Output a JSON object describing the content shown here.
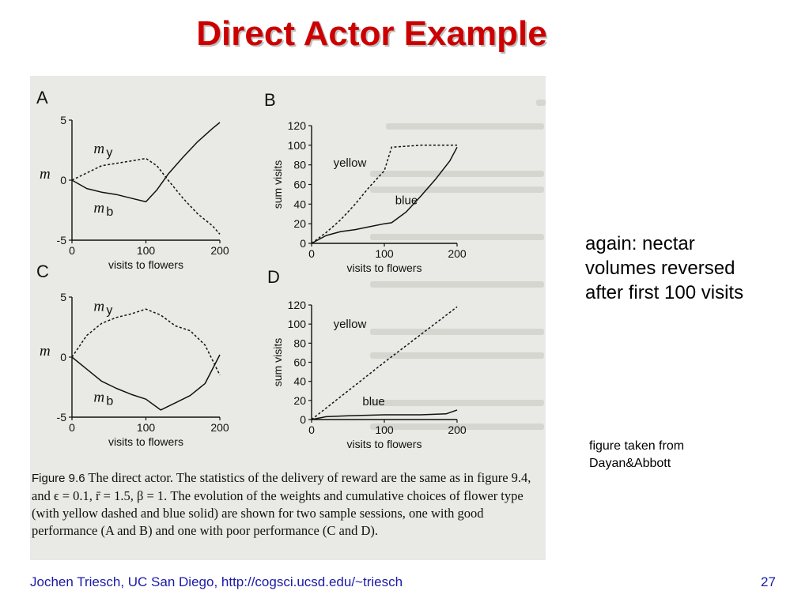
{
  "slide": {
    "title": "Direct Actor Example",
    "side_text": [
      "again: nectar",
      "volumes reversed",
      "after first 100 visits"
    ],
    "credit": [
      "figure taken from",
      "Dayan&Abbott"
    ],
    "footer_left": "Jochen Triesch, UC San Diego, http://cogsci.ucsd.edu/~triesch",
    "page_number": "27"
  },
  "caption": {
    "label": "Figure 9.6",
    "text": "The direct actor. The statistics of the delivery of reward are the same as in figure 9.4, and ϵ = 0.1, r̄ = 1.5, β = 1. The evolution of the weights and cumulative choices of flower type (with yellow dashed and blue solid) are shown for two sample sessions, one with good performance (A and B) and one with poor performance (C and D)."
  },
  "colors": {
    "title": "#cc0000",
    "footer": "#1a1aa8",
    "scan_background": "#e9e9e5"
  },
  "chart_data": [
    {
      "panel": "A",
      "type": "line",
      "xlabel": "visits to flowers",
      "ylabel": "m",
      "xlim": [
        0,
        200
      ],
      "ylim": [
        -5,
        5
      ],
      "xticks": [
        "0",
        "100",
        "200"
      ],
      "yticks": [
        "5",
        "0",
        "-5"
      ],
      "series": [
        {
          "name": "my",
          "style": "dashed",
          "x": [
            0,
            20,
            40,
            60,
            80,
            100,
            115,
            130,
            150,
            170,
            190,
            200
          ],
          "y": [
            0,
            0.6,
            1.2,
            1.4,
            1.6,
            1.8,
            1.2,
            0.0,
            -1.5,
            -2.8,
            -3.8,
            -4.5
          ]
        },
        {
          "name": "mb",
          "style": "solid",
          "x": [
            0,
            20,
            40,
            60,
            80,
            100,
            115,
            130,
            150,
            170,
            190,
            200
          ],
          "y": [
            0,
            -0.7,
            -1.0,
            -1.2,
            -1.5,
            -1.8,
            -0.8,
            0.5,
            1.9,
            3.2,
            4.3,
            4.8
          ]
        }
      ]
    },
    {
      "panel": "B",
      "type": "line",
      "xlabel": "visits to flowers",
      "ylabel": "sum visits",
      "xlim": [
        0,
        200
      ],
      "ylim": [
        0,
        120
      ],
      "xticks": [
        "0",
        "100",
        "200"
      ],
      "yticks": [
        "120",
        "100",
        "80",
        "60",
        "40",
        "20",
        "0"
      ],
      "series": [
        {
          "name": "yellow",
          "style": "dashed",
          "x": [
            0,
            20,
            40,
            60,
            80,
            100,
            110,
            150,
            200
          ],
          "y": [
            0,
            11,
            24,
            40,
            58,
            74,
            98,
            100,
            100
          ]
        },
        {
          "name": "blue",
          "style": "solid",
          "x": [
            0,
            20,
            40,
            60,
            80,
            100,
            110,
            130,
            150,
            170,
            190,
            200
          ],
          "y": [
            0,
            8,
            12,
            14,
            17,
            20,
            21,
            32,
            48,
            65,
            84,
            98
          ]
        }
      ]
    },
    {
      "panel": "C",
      "type": "line",
      "xlabel": "visits to flowers",
      "ylabel": "m",
      "xlim": [
        0,
        200
      ],
      "ylim": [
        -5,
        5
      ],
      "xticks": [
        "0",
        "100",
        "200"
      ],
      "yticks": [
        "5",
        "0",
        "-5"
      ],
      "series": [
        {
          "name": "my",
          "style": "dashed",
          "x": [
            0,
            20,
            40,
            60,
            80,
            100,
            120,
            140,
            160,
            180,
            200
          ],
          "y": [
            0,
            1.8,
            2.8,
            3.3,
            3.6,
            4.0,
            3.5,
            2.6,
            2.2,
            1.0,
            -1.5
          ]
        },
        {
          "name": "mb",
          "style": "solid",
          "x": [
            0,
            20,
            40,
            60,
            80,
            100,
            120,
            140,
            160,
            180,
            200
          ],
          "y": [
            0,
            -1.0,
            -2.0,
            -2.6,
            -3.1,
            -3.5,
            -4.4,
            -3.8,
            -3.2,
            -2.2,
            0.2
          ]
        }
      ]
    },
    {
      "panel": "D",
      "type": "line",
      "xlabel": "visits to flowers",
      "ylabel": "sum visits",
      "xlim": [
        0,
        200
      ],
      "ylim": [
        0,
        120
      ],
      "xticks": [
        "0",
        "100",
        "200"
      ],
      "yticks": [
        "120",
        "100",
        "80",
        "60",
        "40",
        "20",
        "0"
      ],
      "series": [
        {
          "name": "yellow",
          "style": "dashed",
          "x": [
            0,
            50,
            100,
            150,
            200
          ],
          "y": [
            0,
            30,
            60,
            89,
            118
          ]
        },
        {
          "name": "blue",
          "style": "solid",
          "x": [
            0,
            20,
            50,
            100,
            150,
            185,
            200
          ],
          "y": [
            0,
            3,
            4,
            5,
            5,
            6,
            10
          ]
        }
      ]
    }
  ]
}
